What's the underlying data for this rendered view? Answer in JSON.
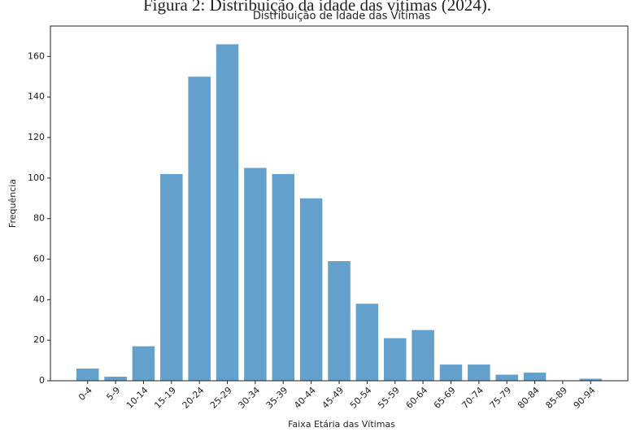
{
  "caption": "Figura 2: Distribuição da idade das vítimas (2024).",
  "chart_data": {
    "type": "bar",
    "title": "Distribuição de Idade das Vítimas",
    "x_label": "Faixa Etária das Vítimas",
    "y_label": "Frequência",
    "categories": [
      "0-4",
      "5-9",
      "10-14",
      "15-19",
      "20-24",
      "25-29",
      "30-34",
      "35-39",
      "40-44",
      "45-49",
      "50-54",
      "55-59",
      "60-64",
      "65-69",
      "70-74",
      "75-79",
      "80-84",
      "85-89",
      "90-94"
    ],
    "values": [
      6,
      2,
      17,
      102,
      150,
      166,
      105,
      102,
      90,
      59,
      38,
      21,
      25,
      8,
      8,
      3,
      4,
      0,
      1
    ],
    "color": "#63a0cb",
    "ylim": [
      0,
      175
    ],
    "yticks": [
      0,
      20,
      40,
      60,
      80,
      100,
      120,
      140,
      160
    ],
    "grid": false
  }
}
